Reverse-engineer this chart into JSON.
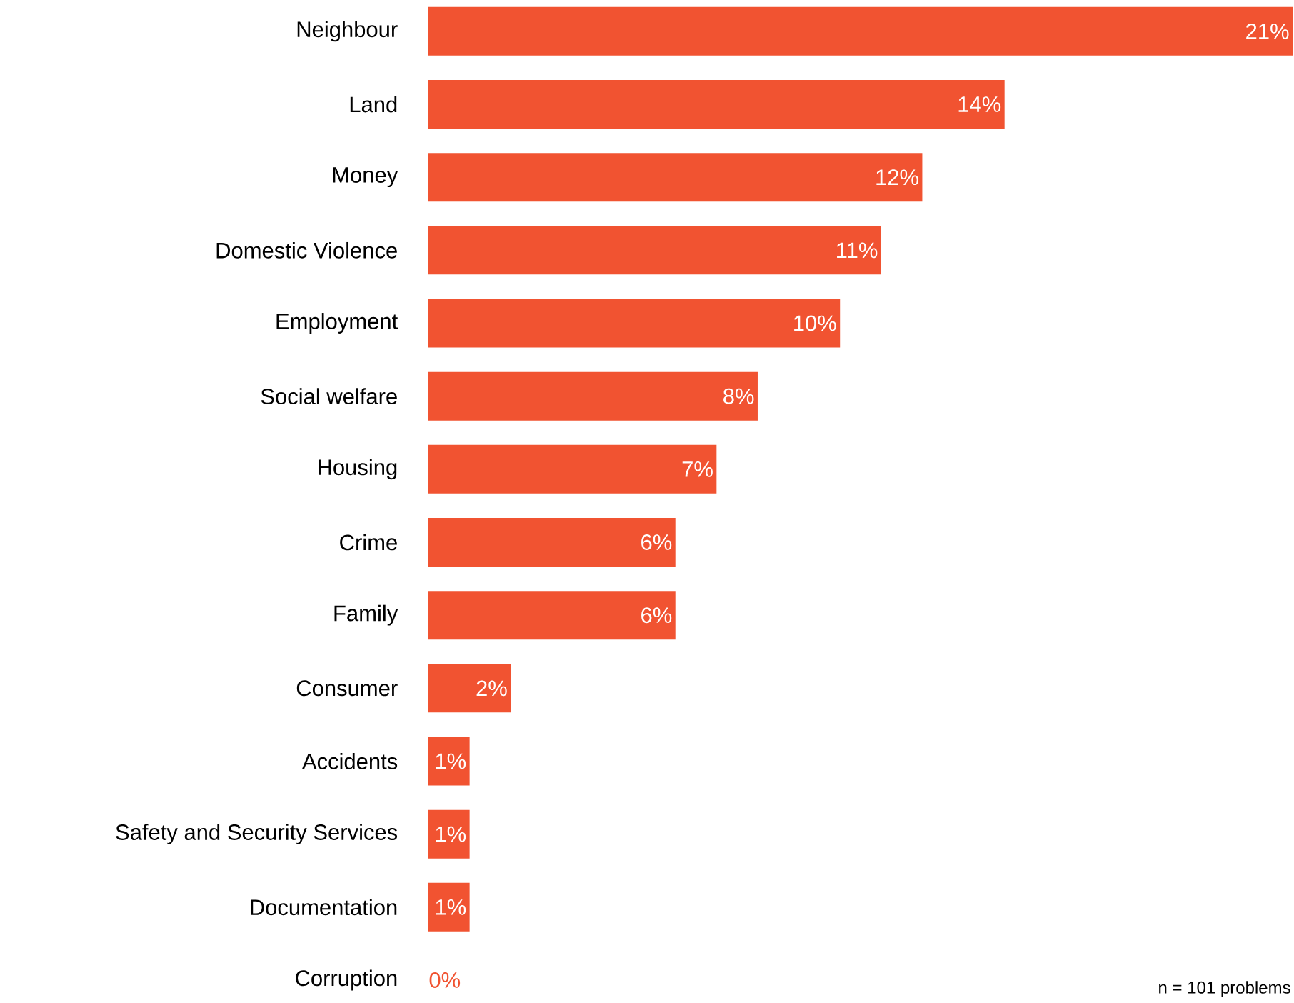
{
  "chart_data": {
    "type": "bar",
    "orientation": "horizontal",
    "color": "#f15331",
    "categories": [
      "Neighbour",
      "Land",
      "Money",
      "Domestic Violence",
      "Employment",
      "Social welfare",
      "Housing",
      "Crime",
      "Family",
      "Consumer",
      "Accidents",
      "Safety and Security Services",
      "Documentation",
      "Corruption"
    ],
    "values": [
      21,
      14,
      12,
      11,
      10,
      8,
      7,
      6,
      6,
      2,
      1,
      1,
      1,
      0
    ],
    "value_labels": [
      "21%",
      "14%",
      "12%",
      "11%",
      "10%",
      "8%",
      "7%",
      "6%",
      "6%",
      "2%",
      "1%",
      "1%",
      "1%",
      "0%"
    ],
    "annotations": [
      "n = 101 problems"
    ]
  }
}
